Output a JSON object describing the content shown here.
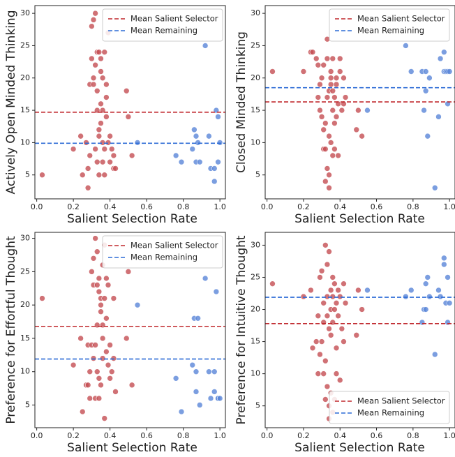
{
  "chart_data": [
    {
      "type": "scatter",
      "xlabel": "Salient Selection Rate",
      "ylabel": "Actively Open Minded Thinking",
      "xlim": [
        -0.01,
        1.03
      ],
      "ylim": [
        1.3,
        31.2
      ],
      "xticks": [
        {
          "value": 0,
          "label": "0.0"
        },
        0.2,
        0.4,
        0.6,
        0.8,
        {
          "value": 1,
          "label": "1.0"
        }
      ],
      "yticks": [
        5,
        10,
        15,
        20,
        25,
        30
      ],
      "legend": "upper right",
      "series": [
        {
          "color": "#c44e52",
          "x": [
            0.03,
            0.2,
            0.24,
            0.25,
            0.27,
            0.28,
            0.28,
            0.29,
            0.29,
            0.3,
            0.3,
            0.31,
            0.31,
            0.31,
            0.32,
            0.32,
            0.32,
            0.33,
            0.33,
            0.33,
            0.33,
            0.34,
            0.34,
            0.34,
            0.34,
            0.35,
            0.35,
            0.35,
            0.35,
            0.36,
            0.36,
            0.36,
            0.36,
            0.37,
            0.37,
            0.37,
            0.38,
            0.38,
            0.38,
            0.39,
            0.39,
            0.4,
            0.4,
            0.41,
            0.42,
            0.42,
            0.43,
            0.49,
            0.5,
            0.52
          ],
          "values": [
            5,
            9,
            11,
            5,
            10,
            3,
            6,
            8,
            19,
            28,
            23,
            19,
            29,
            20,
            30,
            22,
            9,
            18,
            15,
            7,
            24,
            24,
            12,
            11,
            5,
            23,
            21,
            13,
            16,
            20,
            15,
            10,
            7,
            24,
            9,
            5,
            19,
            14,
            17,
            27,
            10,
            11,
            7,
            9,
            8,
            6,
            6,
            18,
            14,
            8
          ]
        },
        {
          "color": "#5a86d8",
          "x": [
            0.55,
            0.76,
            0.79,
            0.85,
            0.86,
            0.87,
            0.87,
            0.88,
            0.89,
            0.92,
            0.94,
            0.95,
            0.97,
            0.97,
            0.98,
            0.99,
            0.99,
            1.0
          ],
          "values": [
            10,
            8,
            7,
            9,
            12,
            7,
            11,
            10,
            7,
            25,
            11,
            6,
            4,
            6,
            15,
            14,
            7,
            10
          ]
        }
      ],
      "mean_lines": [
        {
          "name": "Mean Salient Selector",
          "value": 14.7,
          "color": "#c0282d"
        },
        {
          "name": "Mean Remaining",
          "value": 9.9,
          "color": "#2c6bd6"
        }
      ]
    },
    {
      "type": "scatter",
      "xlabel": "Salient Selection Rate",
      "ylabel": "Closed Minded Thinking",
      "xlim": [
        -0.01,
        1.03
      ],
      "ylim": [
        1.3,
        31.2
      ],
      "xticks": [
        {
          "value": 0,
          "label": "0.0"
        },
        0.2,
        0.4,
        0.6,
        0.8,
        {
          "value": 1,
          "label": "1.0"
        }
      ],
      "yticks": [
        5,
        10,
        15,
        20,
        25,
        30
      ],
      "legend": "upper right",
      "series": [
        {
          "color": "#c44e52",
          "x": [
            0.03,
            0.2,
            0.24,
            0.25,
            0.27,
            0.28,
            0.28,
            0.29,
            0.29,
            0.3,
            0.3,
            0.31,
            0.31,
            0.31,
            0.32,
            0.32,
            0.32,
            0.33,
            0.33,
            0.33,
            0.33,
            0.34,
            0.34,
            0.34,
            0.34,
            0.35,
            0.35,
            0.35,
            0.35,
            0.36,
            0.36,
            0.36,
            0.36,
            0.37,
            0.37,
            0.37,
            0.38,
            0.38,
            0.38,
            0.39,
            0.39,
            0.4,
            0.4,
            0.41,
            0.42,
            0.42,
            0.43,
            0.49,
            0.5,
            0.52
          ],
          "values": [
            21,
            21,
            24,
            24,
            23,
            22,
            17,
            15,
            19,
            20,
            14,
            12,
            9,
            22,
            4,
            13,
            9,
            23,
            17,
            6,
            26,
            18,
            11,
            5,
            3,
            21,
            19,
            20,
            10,
            15,
            8,
            23,
            18,
            13,
            17,
            9,
            14,
            20,
            19,
            16,
            8,
            23,
            21,
            15,
            16,
            20,
            17,
            12,
            15,
            11
          ]
        },
        {
          "color": "#5a86d8",
          "x": [
            0.55,
            0.76,
            0.79,
            0.85,
            0.86,
            0.87,
            0.87,
            0.88,
            0.89,
            0.92,
            0.94,
            0.95,
            0.97,
            0.97,
            0.98,
            0.99,
            0.99,
            1.0
          ],
          "values": [
            15,
            25,
            21,
            21,
            15,
            18,
            21,
            11,
            20,
            3,
            14,
            23,
            24,
            21,
            21,
            16,
            21,
            21
          ]
        }
      ],
      "mean_lines": [
        {
          "name": "Mean Salient Selector",
          "value": 16.3,
          "color": "#c0282d"
        },
        {
          "name": "Mean Remaining",
          "value": 18.5,
          "color": "#2c6bd6"
        }
      ]
    },
    {
      "type": "scatter",
      "xlabel": "Salient Selection Rate",
      "ylabel": "Preference for Effortful Thought",
      "xlim": [
        -0.01,
        1.03
      ],
      "ylim": [
        1.6,
        30.9
      ],
      "xticks": [
        {
          "value": 0,
          "label": "0.0"
        },
        0.2,
        0.4,
        0.6,
        0.8,
        {
          "value": 1,
          "label": "1.0"
        }
      ],
      "yticks": [
        5,
        10,
        15,
        20,
        25,
        30
      ],
      "legend": "upper right",
      "series": [
        {
          "color": "#c44e52",
          "x": [
            0.03,
            0.2,
            0.24,
            0.25,
            0.27,
            0.28,
            0.28,
            0.29,
            0.29,
            0.3,
            0.3,
            0.31,
            0.31,
            0.31,
            0.32,
            0.32,
            0.32,
            0.33,
            0.33,
            0.33,
            0.33,
            0.34,
            0.34,
            0.34,
            0.34,
            0.35,
            0.35,
            0.35,
            0.35,
            0.36,
            0.36,
            0.36,
            0.36,
            0.37,
            0.37,
            0.37,
            0.38,
            0.38,
            0.38,
            0.39,
            0.39,
            0.4,
            0.4,
            0.41,
            0.42,
            0.42,
            0.43,
            0.49,
            0.5,
            0.52
          ],
          "values": [
            21,
            11,
            15,
            4,
            8,
            14,
            8,
            6,
            10,
            14,
            25,
            23,
            12,
            27,
            30,
            14,
            6,
            23,
            17,
            10,
            28,
            22,
            9,
            6,
            24,
            21,
            19,
            20,
            8,
            15,
            26,
            17,
            12,
            29,
            21,
            3,
            18,
            24,
            13,
            23,
            11,
            9,
            14,
            10,
            21,
            12,
            7,
            15,
            25,
            8
          ]
        },
        {
          "color": "#5a86d8",
          "x": [
            0.55,
            0.76,
            0.79,
            0.85,
            0.86,
            0.87,
            0.87,
            0.88,
            0.89,
            0.92,
            0.94,
            0.95,
            0.97,
            0.97,
            0.98,
            0.99,
            0.99,
            1.0
          ],
          "values": [
            20,
            9,
            4,
            11,
            18,
            10,
            7,
            18,
            5,
            24,
            10,
            6,
            10,
            7,
            22,
            6,
            6,
            6
          ]
        }
      ],
      "mean_lines": [
        {
          "name": "Mean Salient Selector",
          "value": 16.8,
          "color": "#c0282d"
        },
        {
          "name": "Mean Remaining",
          "value": 11.9,
          "color": "#2c6bd6"
        }
      ]
    },
    {
      "type": "scatter",
      "xlabel": "Salient Selection Rate",
      "ylabel": "Preference for Intuitive Thought",
      "xlim": [
        -0.01,
        1.03
      ],
      "ylim": [
        1.6,
        32
      ],
      "xticks": [
        {
          "value": 0,
          "label": "0.0"
        },
        0.2,
        0.4,
        0.6,
        0.8,
        {
          "value": 1,
          "label": "1.0"
        }
      ],
      "yticks": [
        5,
        10,
        15,
        20,
        25,
        30
      ],
      "legend": "lower right",
      "series": [
        {
          "color": "#c44e52",
          "x": [
            0.03,
            0.2,
            0.24,
            0.25,
            0.27,
            0.28,
            0.28,
            0.29,
            0.29,
            0.3,
            0.3,
            0.31,
            0.31,
            0.31,
            0.32,
            0.32,
            0.32,
            0.33,
            0.33,
            0.33,
            0.33,
            0.34,
            0.34,
            0.34,
            0.34,
            0.35,
            0.35,
            0.35,
            0.35,
            0.36,
            0.36,
            0.36,
            0.36,
            0.37,
            0.37,
            0.37,
            0.38,
            0.38,
            0.38,
            0.39,
            0.39,
            0.4,
            0.4,
            0.41,
            0.42,
            0.42,
            0.43,
            0.49,
            0.5,
            0.52
          ],
          "values": [
            24,
            22,
            23,
            14,
            15,
            10,
            19,
            13,
            25,
            15,
            26,
            18,
            10,
            21,
            30,
            12,
            6,
            22,
            19,
            8,
            27,
            17,
            3,
            5,
            29,
            23,
            20,
            16,
            7,
            22,
            25,
            18,
            4,
            24,
            20,
            6,
            14,
            21,
            10,
            23,
            19,
            9,
            22,
            17,
            24,
            15,
            21,
            16,
            23,
            20
          ]
        },
        {
          "color": "#5a86d8",
          "x": [
            0.55,
            0.76,
            0.79,
            0.85,
            0.86,
            0.87,
            0.87,
            0.88,
            0.89,
            0.92,
            0.94,
            0.95,
            0.97,
            0.97,
            0.98,
            0.99,
            0.99,
            1.0
          ],
          "values": [
            23,
            22,
            23,
            18,
            20,
            20,
            24,
            25,
            22,
            13,
            23,
            22,
            28,
            27,
            21,
            18,
            25,
            21
          ]
        }
      ],
      "mean_lines": [
        {
          "name": "Mean Salient Selector",
          "value": 17.8,
          "color": "#c0282d"
        },
        {
          "name": "Mean Remaining",
          "value": 21.9,
          "color": "#2c6bd6"
        }
      ]
    }
  ]
}
